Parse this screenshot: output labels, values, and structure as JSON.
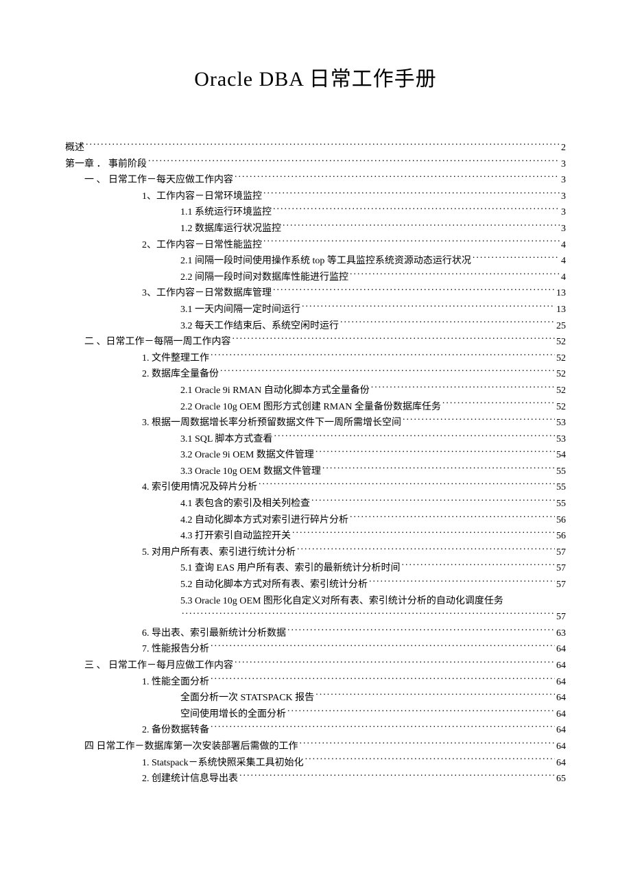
{
  "title": "Oracle DBA 日常工作手册",
  "toc": [
    {
      "indent": 0,
      "label": "概述",
      "page": "2"
    },
    {
      "indent": 0,
      "label": "第一章 ． 事前阶段",
      "page": "3"
    },
    {
      "indent": 1,
      "label": "一 、 日常工作－每天应做工作内容",
      "page": "3"
    },
    {
      "indent": 2,
      "label": "1、工作内容－日常环境监控",
      "page": "3"
    },
    {
      "indent": 3,
      "label": "1.1 系统运行环境监控",
      "page": "3"
    },
    {
      "indent": 3,
      "label": "1.2 数据库运行状况监控",
      "page": "3"
    },
    {
      "indent": 2,
      "label": "2、工作内容－日常性能监控",
      "page": "4"
    },
    {
      "indent": 3,
      "label": "2.1 间隔一段时间使用操作系统 top 等工具监控系统资源动态运行状况",
      "page": "4"
    },
    {
      "indent": 3,
      "label": "2.2 间隔一段时间对数据库性能进行监控",
      "page": "4"
    },
    {
      "indent": 2,
      "label": "3、工作内容－日常数据库管理",
      "page": "13"
    },
    {
      "indent": 3,
      "label": "3.1 一天内间隔一定时间运行",
      "page": "13"
    },
    {
      "indent": 3,
      "label": "3.2 每天工作结束后、系统空闲时运行",
      "page": "25"
    },
    {
      "indent": 1,
      "label": "二 、日常工作－每隔一周工作内容",
      "page": "52"
    },
    {
      "indent": 2,
      "label": "1. 文件整理工作",
      "page": "52"
    },
    {
      "indent": 2,
      "label": "2. 数据库全量备份",
      "page": "52"
    },
    {
      "indent": 3,
      "label": "2.1 Oracle 9i RMAN 自动化脚本方式全量备份",
      "page": "52"
    },
    {
      "indent": 3,
      "label": "2.2 Oracle 10g OEM 图形方式创建 RMAN 全量备份数据库任务",
      "page": "52"
    },
    {
      "indent": 2,
      "label": "3. 根据一周数据增长率分析预留数据文件下一周所需增长空间",
      "page": "53"
    },
    {
      "indent": 3,
      "label": "3.1 SQL 脚本方式查看",
      "page": "53"
    },
    {
      "indent": 3,
      "label": "3.2 Oracle 9i OEM 数据文件管理",
      "page": "54"
    },
    {
      "indent": 3,
      "label": "3.3 Oracle 10g OEM 数据文件管理",
      "page": "55"
    },
    {
      "indent": 2,
      "label": "4. 索引使用情况及碎片分析",
      "page": "55"
    },
    {
      "indent": 3,
      "label": "4.1 表包含的索引及相关列检查",
      "page": "55"
    },
    {
      "indent": 3,
      "label": "4.2 自动化脚本方式对索引进行碎片分析",
      "page": "56"
    },
    {
      "indent": 3,
      "label": "4.3 打开索引自动监控开关",
      "page": "56"
    },
    {
      "indent": 2,
      "label": "5. 对用户所有表、索引进行统计分析",
      "page": "57"
    },
    {
      "indent": 3,
      "label": "5.1 查询 EAS 用户所有表、索引的最新统计分析时间",
      "page": "57"
    },
    {
      "indent": 3,
      "label": "5.2 自动化脚本方式对所有表、索引统计分析",
      "page": "57"
    },
    {
      "indent": 3,
      "label": "5.3 Oracle 10g OEM 图形化自定义对所有表、索引统计分析的自动化调度任务",
      "page": "57",
      "wrap": true
    },
    {
      "indent": 2,
      "label": "6. 导出表、索引最新统计分析数据",
      "page": "63"
    },
    {
      "indent": 2,
      "label": "7. 性能报告分析",
      "page": "64"
    },
    {
      "indent": 1,
      "label": "三 、 日常工作－每月应做工作内容",
      "page": "64"
    },
    {
      "indent": 2,
      "label": "1. 性能全面分析",
      "page": "64"
    },
    {
      "indent": 3,
      "label": "全面分析一次 STATSPACK 报告",
      "page": "64"
    },
    {
      "indent": 3,
      "label": "空间使用增长的全面分析",
      "page": "64"
    },
    {
      "indent": 2,
      "label": "2. 备份数据转备",
      "page": "64"
    },
    {
      "indent": 1,
      "label": "四 日常工作－数据库第一次安装部署后需做的工作",
      "page": "64"
    },
    {
      "indent": 2,
      "label": "1. Statspack－系统快照采集工具初始化",
      "page": "64"
    },
    {
      "indent": 2,
      "label": "2. 创建统计信息导出表",
      "page": "65"
    }
  ]
}
